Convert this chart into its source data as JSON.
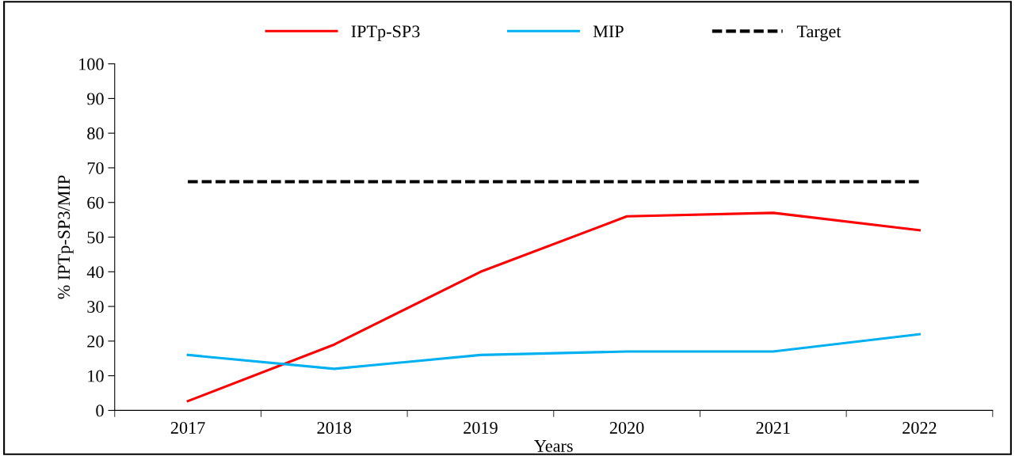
{
  "chart_data": {
    "type": "line",
    "xlabel": "Years",
    "ylabel": "% IPTp-SP3/MIP",
    "categories": [
      "2017",
      "2018",
      "2019",
      "2020",
      "2021",
      "2022"
    ],
    "series": [
      {
        "name": "IPTp-SP3",
        "color": "#ff0000",
        "values": [
          2.7,
          19,
          40,
          56,
          57,
          52
        ]
      },
      {
        "name": "MIP",
        "color": "#00b0f0",
        "values": [
          16,
          12,
          16,
          17,
          17,
          22
        ]
      },
      {
        "name": "Target",
        "color": "#000000",
        "line_style": "dashed",
        "values": [
          66,
          66,
          66,
          66,
          66,
          66
        ]
      }
    ],
    "ylim": [
      0,
      100
    ],
    "yticks": [
      0,
      10,
      20,
      30,
      40,
      50,
      60,
      70,
      80,
      90,
      100
    ],
    "grid": false,
    "legend": "top",
    "marker": "none"
  }
}
